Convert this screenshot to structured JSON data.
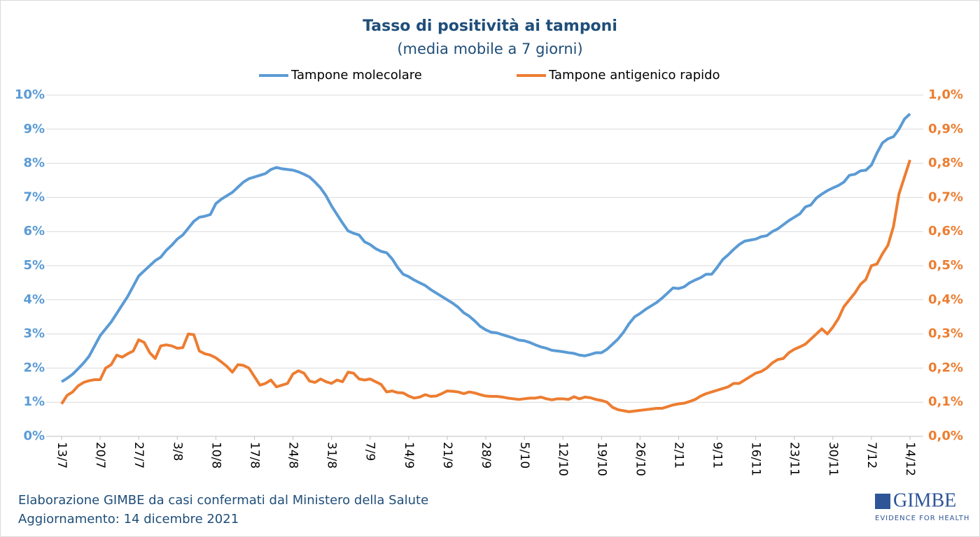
{
  "chart_data": {
    "type": "line",
    "title": "Tasso di positività ai tamponi",
    "subtitle": "(media mobile a 7 giorni)",
    "categories": [
      "13/7",
      null,
      null,
      null,
      null,
      null,
      null,
      "20/7",
      null,
      null,
      null,
      null,
      null,
      null,
      "27/7",
      null,
      null,
      null,
      null,
      null,
      null,
      "3/8",
      null,
      null,
      null,
      null,
      null,
      null,
      "10/8",
      null,
      null,
      null,
      null,
      null,
      null,
      "17/8",
      null,
      null,
      null,
      null,
      null,
      null,
      "24/8",
      null,
      null,
      null,
      null,
      null,
      null,
      "31/8",
      null,
      null,
      null,
      null,
      null,
      null,
      "7/9",
      null,
      null,
      null,
      null,
      null,
      null,
      "14/9",
      null,
      null,
      null,
      null,
      null,
      null,
      "21/9",
      null,
      null,
      null,
      null,
      null,
      null,
      "28/9",
      null,
      null,
      null,
      null,
      null,
      null,
      "5/10",
      null,
      null,
      null,
      null,
      null,
      null,
      "12/10",
      null,
      null,
      null,
      null,
      null,
      null,
      "19/10",
      null,
      null,
      null,
      null,
      null,
      null,
      "26/10",
      null,
      null,
      null,
      null,
      null,
      null,
      "2/11",
      null,
      null,
      null,
      null,
      null,
      null,
      "9/11",
      null,
      null,
      null,
      null,
      null,
      null,
      "16/11",
      null,
      null,
      null,
      null,
      null,
      null,
      "23/11",
      null,
      null,
      null,
      null,
      null,
      null,
      "30/11",
      null,
      null,
      null,
      null,
      null,
      null,
      "7/12",
      null,
      null,
      null,
      null,
      null,
      null,
      "14/12"
    ],
    "series": [
      {
        "name": "Tampone molecolare",
        "color": "#5b9bd5",
        "axis": "y",
        "values": [
          1.6,
          1.7,
          1.82,
          1.98,
          2.15,
          2.35,
          2.65,
          2.95,
          3.15,
          3.35,
          3.6,
          3.85,
          4.1,
          4.4,
          4.7,
          4.85,
          5.0,
          5.15,
          5.25,
          5.45,
          5.6,
          5.78,
          5.9,
          6.1,
          6.3,
          6.42,
          6.45,
          6.5,
          6.82,
          6.95,
          7.05,
          7.15,
          7.3,
          7.45,
          7.55,
          7.6,
          7.65,
          7.7,
          7.82,
          7.88,
          7.84,
          7.82,
          7.8,
          7.75,
          7.68,
          7.6,
          7.45,
          7.28,
          7.05,
          6.75,
          6.5,
          6.25,
          6.02,
          5.95,
          5.9,
          5.7,
          5.62,
          5.5,
          5.42,
          5.38,
          5.2,
          4.95,
          4.75,
          4.68,
          4.58,
          4.5,
          4.42,
          4.3,
          4.2,
          4.1,
          4.0,
          3.9,
          3.78,
          3.62,
          3.52,
          3.38,
          3.22,
          3.12,
          3.05,
          3.03,
          2.98,
          2.93,
          2.88,
          2.82,
          2.8,
          2.75,
          2.68,
          2.62,
          2.58,
          2.52,
          2.5,
          2.48,
          2.45,
          2.43,
          2.38,
          2.36,
          2.4,
          2.45,
          2.45,
          2.55,
          2.7,
          2.85,
          3.05,
          3.3,
          3.5,
          3.6,
          3.72,
          3.82,
          3.92,
          4.05,
          4.2,
          4.35,
          4.33,
          4.38,
          4.5,
          4.58,
          4.65,
          4.75,
          4.75,
          4.95,
          5.18,
          5.32,
          5.48,
          5.62,
          5.72,
          5.75,
          5.78,
          5.85,
          5.88,
          6.0,
          6.08,
          6.2,
          6.32,
          6.42,
          6.52,
          6.72,
          6.78,
          6.98,
          7.1,
          7.2,
          7.28,
          7.35,
          7.45,
          7.65,
          7.68,
          7.78,
          7.8,
          7.95,
          8.3,
          8.6,
          8.72,
          8.78,
          9.0,
          9.3,
          9.45
        ]
      },
      {
        "name": "Tampone antigenico rapido",
        "color": "#ed7d31",
        "axis": "y2",
        "values": [
          0.095,
          0.12,
          0.13,
          0.148,
          0.158,
          0.163,
          0.166,
          0.166,
          0.2,
          0.21,
          0.238,
          0.232,
          0.242,
          0.25,
          0.283,
          0.275,
          0.245,
          0.228,
          0.265,
          0.268,
          0.265,
          0.258,
          0.26,
          0.3,
          0.298,
          0.25,
          0.242,
          0.238,
          0.23,
          0.218,
          0.205,
          0.188,
          0.21,
          0.208,
          0.2,
          0.175,
          0.15,
          0.155,
          0.165,
          0.145,
          0.15,
          0.155,
          0.183,
          0.192,
          0.185,
          0.162,
          0.158,
          0.168,
          0.16,
          0.155,
          0.165,
          0.16,
          0.188,
          0.185,
          0.168,
          0.165,
          0.168,
          0.16,
          0.152,
          0.13,
          0.133,
          0.128,
          0.127,
          0.118,
          0.112,
          0.115,
          0.122,
          0.117,
          0.118,
          0.125,
          0.133,
          0.132,
          0.13,
          0.125,
          0.13,
          0.127,
          0.122,
          0.118,
          0.117,
          0.117,
          0.115,
          0.112,
          0.11,
          0.108,
          0.11,
          0.112,
          0.112,
          0.115,
          0.11,
          0.107,
          0.11,
          0.11,
          0.108,
          0.116,
          0.11,
          0.115,
          0.113,
          0.108,
          0.105,
          0.1,
          0.085,
          0.078,
          0.075,
          0.072,
          0.074,
          0.076,
          0.078,
          0.08,
          0.082,
          0.082,
          0.087,
          0.092,
          0.095,
          0.097,
          0.102,
          0.108,
          0.118,
          0.125,
          0.13,
          0.135,
          0.14,
          0.145,
          0.155,
          0.155,
          0.165,
          0.175,
          0.185,
          0.19,
          0.2,
          0.215,
          0.225,
          0.228,
          0.245,
          0.255,
          0.262,
          0.27,
          0.285,
          0.3,
          0.315,
          0.3,
          0.32,
          0.345,
          0.38,
          0.4,
          0.42,
          0.445,
          0.46,
          0.5,
          0.505,
          0.535,
          0.56,
          0.615,
          0.71,
          0.76,
          0.81
        ]
      }
    ],
    "ylim": [
      0,
      10
    ],
    "yticks": [
      {
        "value": 0,
        "label": "0%"
      },
      {
        "value": 1,
        "label": "1%"
      },
      {
        "value": 2,
        "label": "2%"
      },
      {
        "value": 3,
        "label": "3%"
      },
      {
        "value": 4,
        "label": "4%"
      },
      {
        "value": 5,
        "label": "5%"
      },
      {
        "value": 6,
        "label": "6%"
      },
      {
        "value": 7,
        "label": "7%"
      },
      {
        "value": 8,
        "label": "8%"
      },
      {
        "value": 9,
        "label": "9%"
      },
      {
        "value": 10,
        "label": "10%"
      }
    ],
    "y2lim": [
      0,
      1
    ],
    "y2ticks": [
      {
        "value": 0,
        "label": "0,0%"
      },
      {
        "value": 0.1,
        "label": "0,1%"
      },
      {
        "value": 0.2,
        "label": "0,2%"
      },
      {
        "value": 0.3,
        "label": "0,3%"
      },
      {
        "value": 0.4,
        "label": "0,4%"
      },
      {
        "value": 0.5,
        "label": "0,5%"
      },
      {
        "value": 0.6,
        "label": "0,6%"
      },
      {
        "value": 0.7,
        "label": "0,7%"
      },
      {
        "value": 0.8,
        "label": "0,8%"
      },
      {
        "value": 0.9,
        "label": "0,9%"
      },
      {
        "value": 1,
        "label": "1,0%"
      }
    ],
    "grid": true,
    "legend": "top"
  },
  "footer": [
    "Elaborazione GIMBE da casi confermati dal Ministero della Salute",
    "Aggiornamento: 14 dicembre 2021"
  ],
  "logo": {
    "name": "GIMBE",
    "tagline": "EVIDENCE FOR HEALTH"
  }
}
